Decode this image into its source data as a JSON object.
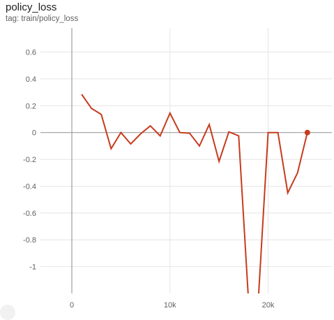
{
  "header": {
    "title": "policy_loss",
    "tag": "tag: train/policy_loss"
  },
  "colors": {
    "series": "#c73a1d",
    "grid": "#e4e4e4",
    "zero_axis": "#9e9e9e",
    "text": "#616161"
  },
  "chart_data": {
    "type": "line",
    "title": "policy_loss",
    "xlabel": "",
    "ylabel": "",
    "xlim": [
      -3200,
      26500
    ],
    "ylim": [
      -1.2,
      0.78
    ],
    "x_ticks": [
      0,
      10000,
      20000
    ],
    "x_tick_labels": [
      "0",
      "10k",
      "20k"
    ],
    "y_ticks": [
      0.6,
      0.4,
      0.2,
      0,
      -0.2,
      -0.4,
      -0.6,
      -0.8,
      -1
    ],
    "y_tick_labels": [
      "0.6",
      "0.4",
      "0.2",
      "0",
      "-0.2",
      "-0.4",
      "-0.6",
      "-0.8",
      "-1"
    ],
    "grid": true,
    "series": [
      {
        "name": "",
        "x": [
          1000,
          2000,
          3000,
          4000,
          5000,
          6000,
          7000,
          8000,
          9000,
          10000,
          11000,
          12000,
          13000,
          14000,
          15000,
          16000,
          17000,
          18000,
          19000,
          20000,
          21000,
          22000,
          23000,
          24000
        ],
        "y": [
          0.285,
          0.18,
          0.135,
          -0.12,
          0.0,
          -0.085,
          -0.01,
          0.05,
          -0.025,
          0.145,
          0.0,
          -0.005,
          -0.1,
          0.06,
          -0.215,
          0.005,
          -0.025,
          -1.25,
          -1.25,
          0.0,
          0.0,
          -0.45,
          -0.3,
          0.0
        ],
        "last_point_marker": true
      }
    ]
  }
}
